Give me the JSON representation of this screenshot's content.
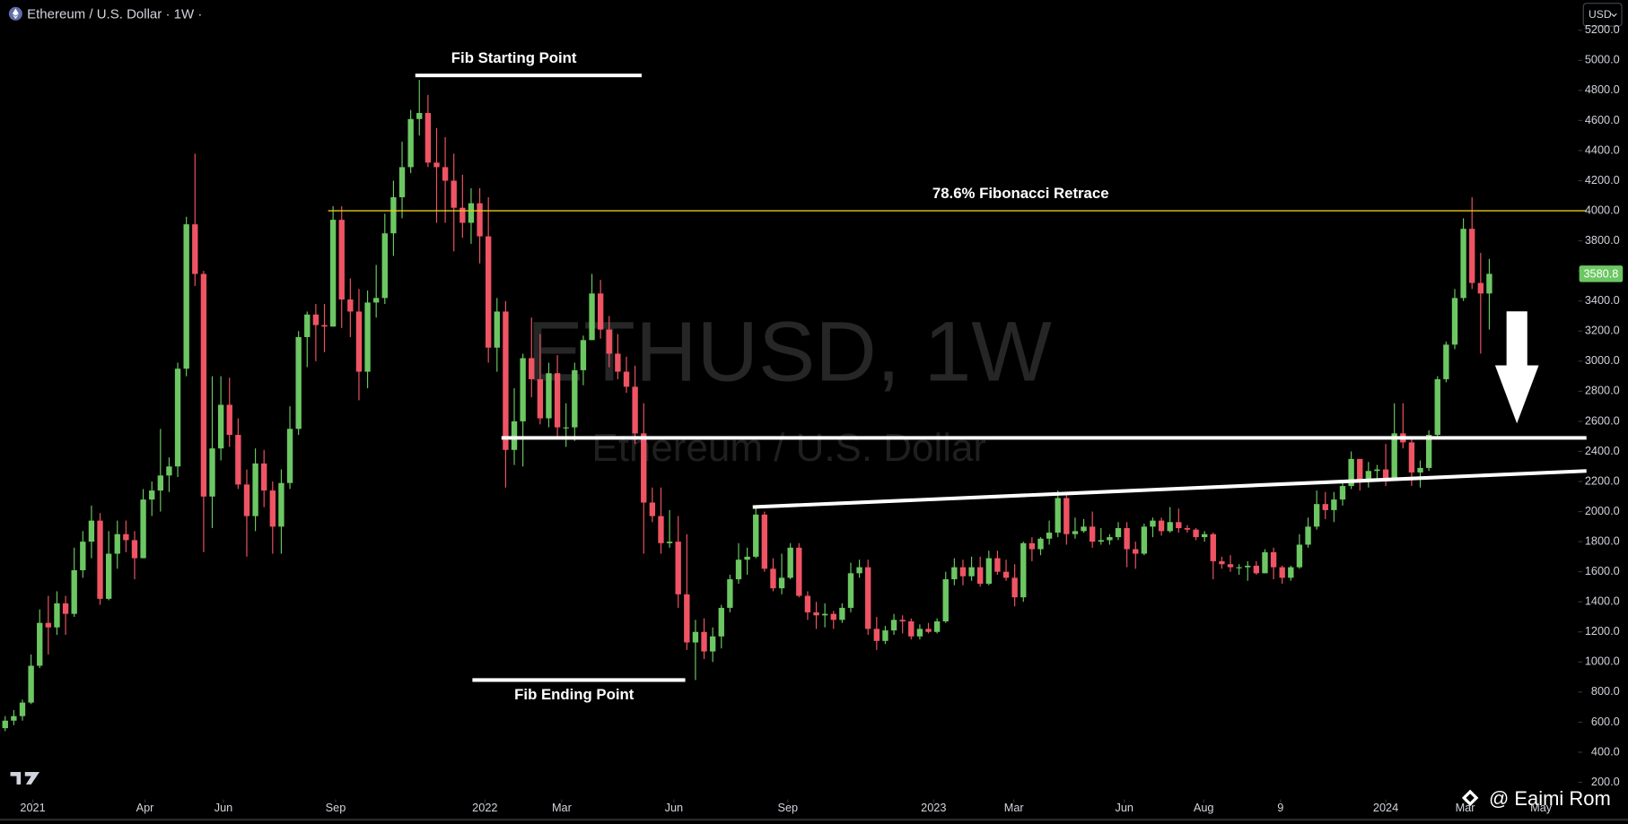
{
  "header": {
    "symbol_title": "Ethereum / U.S. Dollar · 1W ·",
    "currency": "USD"
  },
  "watermark": {
    "symbol": "ETHUSD, 1W",
    "description": "Ethereum / U.S. Dollar"
  },
  "footer": {
    "author": "@ Eaimi Rom"
  },
  "chart_data": {
    "type": "candlestick",
    "up_color": "#6cc763",
    "down_color": "#ef5464",
    "open": [
      560,
      610,
      640,
      730,
      975,
      1260,
      1230,
      1390,
      1320,
      1610,
      1800,
      1940,
      1420,
      1720,
      1850,
      1810,
      1690,
      2080,
      2140,
      2240,
      2300,
      2950,
      3910,
      3580,
      2100,
      2420,
      2710,
      2510,
      2180,
      1970,
      2320,
      2140,
      1900,
      2190,
      2550,
      3160,
      3310,
      3240,
      3230,
      3940,
      3410,
      3330,
      2930,
      3390,
      3420,
      3850,
      4090,
      4290,
      4610,
      4650,
      4320,
      4290,
      4200,
      4020,
      3920,
      4050,
      3830,
      3090,
      3330,
      2410,
      2600,
      3020,
      2880,
      2620,
      2920,
      2560,
      2560,
      2940,
      3140,
      3450,
      3210,
      3050,
      2930,
      2830,
      2520,
      2060,
      1970,
      1790,
      1800,
      1450,
      1130,
      1200,
      1070,
      1170,
      1360,
      1550,
      1680,
      1700,
      1980,
      1620,
      1490,
      1560,
      1760,
      1440,
      1330,
      1310,
      1320,
      1280,
      1360,
      1590,
      1630,
      1220,
      1140,
      1210,
      1280,
      1270,
      1170,
      1220,
      1200,
      1270,
      1550,
      1630,
      1570,
      1630,
      1520,
      1690,
      1600,
      1560,
      1430,
      1790,
      1750,
      1820,
      1860,
      2090,
      1850,
      1870,
      1900,
      1800,
      1810,
      1830,
      1890,
      1750,
      1720,
      1900,
      1940,
      1870,
      1930,
      1890,
      1880,
      1830,
      1850,
      1670,
      1650,
      1630,
      1630,
      1640,
      1590,
      1730,
      1630,
      1560,
      1630,
      1780,
      1900,
      2050,
      2010,
      2080,
      2170,
      2350,
      2200,
      2270,
      2280,
      2220,
      2520,
      2460,
      2260,
      2290,
      2510,
      2880,
      3110,
      3420,
      3880,
      3520,
      3450
    ],
    "high": [
      640,
      680,
      750,
      1050,
      1350,
      1440,
      1470,
      1440,
      1760,
      1870,
      2040,
      1990,
      1870,
      1940,
      1940,
      1870,
      2150,
      2200,
      2550,
      2360,
      2990,
      3960,
      4380,
      3600,
      2900,
      2900,
      2890,
      2620,
      2280,
      2420,
      2410,
      2200,
      2280,
      2700,
      3200,
      3330,
      3380,
      3380,
      4030,
      4030,
      3550,
      3480,
      3470,
      3640,
      3980,
      4200,
      4460,
      4670,
      4870,
      4770,
      4550,
      4490,
      4380,
      4240,
      4150,
      4150,
      4090,
      3420,
      3400,
      2820,
      3050,
      3290,
      3180,
      2990,
      3040,
      2720,
      2990,
      3170,
      3580,
      3540,
      3300,
      3180,
      3030,
      2970,
      2720,
      2160,
      2160,
      2010,
      1970,
      1850,
      1280,
      1290,
      1230,
      1380,
      1580,
      1790,
      1760,
      2030,
      2000,
      1690,
      1720,
      1790,
      1790,
      1470,
      1400,
      1390,
      1340,
      1390,
      1660,
      1680,
      1680,
      1300,
      1240,
      1320,
      1310,
      1290,
      1250,
      1260,
      1290,
      1600,
      1690,
      1680,
      1700,
      1700,
      1740,
      1740,
      1680,
      1650,
      1800,
      1830,
      1830,
      1940,
      2140,
      2130,
      1960,
      1950,
      2000,
      1890,
      1850,
      1930,
      1930,
      1800,
      1920,
      1960,
      1960,
      2030,
      2020,
      1910,
      1890,
      1870,
      1860,
      1700,
      1710,
      1650,
      1670,
      1670,
      1750,
      1760,
      1640,
      1640,
      1850,
      1960,
      2140,
      2130,
      2130,
      2200,
      2400,
      2350,
      2330,
      2310,
      2450,
      2720,
      2720,
      2490,
      2340,
      2540,
      2900,
      3130,
      3480,
      3950,
      4090,
      3720,
      3680
    ],
    "low": [
      540,
      580,
      610,
      720,
      960,
      1050,
      1180,
      1180,
      1300,
      1560,
      1690,
      1380,
      1410,
      1620,
      1730,
      1550,
      1690,
      1970,
      2000,
      2130,
      2230,
      2900,
      3500,
      1730,
      1890,
      2340,
      2430,
      2150,
      1700,
      1870,
      2030,
      1720,
      1720,
      2150,
      2510,
      2960,
      3000,
      3060,
      3230,
      3220,
      3160,
      2740,
      2820,
      3290,
      3380,
      3700,
      3950,
      4250,
      4500,
      4290,
      3920,
      3920,
      3730,
      3820,
      3780,
      3650,
      2990,
      2930,
      2160,
      2310,
      2300,
      2760,
      2580,
      2560,
      2490,
      2430,
      2470,
      2840,
      3140,
      3150,
      2960,
      2880,
      2790,
      2450,
      1720,
      1930,
      1720,
      1760,
      1360,
      1080,
      880,
      1020,
      1000,
      1090,
      1330,
      1520,
      1580,
      1690,
      1600,
      1470,
      1450,
      1550,
      1430,
      1280,
      1220,
      1230,
      1220,
      1260,
      1330,
      1560,
      1180,
      1080,
      1120,
      1180,
      1190,
      1150,
      1150,
      1190,
      1190,
      1260,
      1510,
      1510,
      1540,
      1500,
      1510,
      1580,
      1540,
      1370,
      1400,
      1670,
      1710,
      1780,
      1830,
      1780,
      1820,
      1860,
      1760,
      1780,
      1780,
      1810,
      1630,
      1620,
      1710,
      1830,
      1840,
      1860,
      1860,
      1860,
      1810,
      1800,
      1550,
      1620,
      1600,
      1580,
      1540,
      1580,
      1590,
      1550,
      1520,
      1540,
      1620,
      1760,
      1880,
      1950,
      1930,
      2040,
      2150,
      2140,
      2160,
      2220,
      2170,
      2220,
      2420,
      2170,
      2160,
      2270,
      2490,
      2860,
      3080,
      3400,
      3480,
      3050,
      3210
    ],
    "close": [
      610,
      640,
      730,
      975,
      1260,
      1230,
      1390,
      1320,
      1610,
      1800,
      1940,
      1420,
      1720,
      1850,
      1810,
      1690,
      2080,
      2140,
      2240,
      2300,
      2950,
      3910,
      3580,
      2100,
      2420,
      2710,
      2510,
      2180,
      1970,
      2320,
      2140,
      1900,
      2190,
      2550,
      3160,
      3310,
      3240,
      3230,
      3940,
      3410,
      3330,
      2930,
      3390,
      3420,
      3850,
      4090,
      4290,
      4610,
      4650,
      4320,
      4290,
      4200,
      4020,
      3920,
      4050,
      3830,
      3090,
      3330,
      2410,
      2600,
      3020,
      2880,
      2620,
      2920,
      2560,
      2560,
      2940,
      3140,
      3450,
      3210,
      3050,
      2930,
      2830,
      2520,
      2060,
      1970,
      1790,
      1800,
      1450,
      1130,
      1200,
      1070,
      1170,
      1360,
      1550,
      1680,
      1700,
      1980,
      1620,
      1490,
      1560,
      1760,
      1440,
      1330,
      1310,
      1320,
      1280,
      1360,
      1590,
      1630,
      1220,
      1140,
      1210,
      1280,
      1270,
      1170,
      1220,
      1200,
      1270,
      1550,
      1630,
      1570,
      1630,
      1520,
      1690,
      1600,
      1560,
      1430,
      1790,
      1750,
      1820,
      1860,
      2090,
      1850,
      1870,
      1900,
      1800,
      1810,
      1830,
      1890,
      1750,
      1720,
      1900,
      1940,
      1870,
      1930,
      1890,
      1880,
      1830,
      1850,
      1670,
      1650,
      1630,
      1630,
      1640,
      1590,
      1730,
      1630,
      1560,
      1630,
      1780,
      1900,
      2050,
      2010,
      2080,
      2170,
      2350,
      2200,
      2270,
      2280,
      2220,
      2520,
      2460,
      2260,
      2290,
      2510,
      2880,
      3110,
      3420,
      3880,
      3520,
      3450,
      3580.8
    ],
    "xlim": [
      -0.6,
      182.3
    ],
    "xticks": [
      {
        "value": 3.2,
        "label": "2021"
      },
      {
        "value": 16.2,
        "label": "Apr"
      },
      {
        "value": 25.3,
        "label": "Jun"
      },
      {
        "value": 38.3,
        "label": "Sep"
      },
      {
        "value": 55.6,
        "label": "2022"
      },
      {
        "value": 64.5,
        "label": "Mar"
      },
      {
        "value": 77.5,
        "label": "Jun"
      },
      {
        "value": 90.7,
        "label": "Sep"
      },
      {
        "value": 107.6,
        "label": "2023"
      },
      {
        "value": 116.9,
        "label": "Mar"
      },
      {
        "value": 129.7,
        "label": "Jun"
      },
      {
        "value": 138.9,
        "label": "Aug"
      },
      {
        "value": 147.8,
        "label": "9"
      },
      {
        "value": 160,
        "label": "2024"
      },
      {
        "value": 169.2,
        "label": "Mar"
      },
      {
        "value": 178,
        "label": "May"
      }
    ],
    "ylim": [
      100,
      5400
    ],
    "yticks": [
      {
        "value": 200,
        "label": "200.0"
      },
      {
        "value": 400,
        "label": "400.0"
      },
      {
        "value": 600,
        "label": "600.0"
      },
      {
        "value": 800,
        "label": "800.0"
      },
      {
        "value": 1000,
        "label": "1000.0"
      },
      {
        "value": 1200,
        "label": "1200.0"
      },
      {
        "value": 1400,
        "label": "1400.0"
      },
      {
        "value": 1600,
        "label": "1600.0"
      },
      {
        "value": 1800,
        "label": "1800.0"
      },
      {
        "value": 2000,
        "label": "2000.0"
      },
      {
        "value": 2200,
        "label": "2200.0"
      },
      {
        "value": 2400,
        "label": "2400.0"
      },
      {
        "value": 2600,
        "label": "2600.0"
      },
      {
        "value": 2800,
        "label": "2800.0"
      },
      {
        "value": 3000,
        "label": "3000.0"
      },
      {
        "value": 3200,
        "label": "3200.0"
      },
      {
        "value": 3400,
        "label": "3400.0"
      },
      {
        "value": 3600,
        "label": "3600.0"
      },
      {
        "value": 3800,
        "label": "3800.0"
      },
      {
        "value": 4000,
        "label": "4000.0"
      },
      {
        "value": 4200,
        "label": "4200.0"
      },
      {
        "value": 4400,
        "label": "4400.0"
      },
      {
        "value": 4600,
        "label": "4600.0"
      },
      {
        "value": 4800,
        "label": "4800.0"
      },
      {
        "value": 5000,
        "label": "5000.0"
      },
      {
        "value": 5200,
        "label": "5200.0"
      }
    ],
    "grid": false,
    "annotations": {
      "fib_start": {
        "text": "Fib Starting Point",
        "y": 4900
      },
      "fib_end": {
        "text": "Fib Ending Point",
        "y": 880
      },
      "fib_retrace": {
        "text": "78.6% Fibonacci Retrace",
        "y": 4000,
        "color": "#e8c81c"
      },
      "support": {
        "y": 2490
      },
      "trendline": {
        "y": [
          2030,
          2270
        ]
      }
    }
  }
}
